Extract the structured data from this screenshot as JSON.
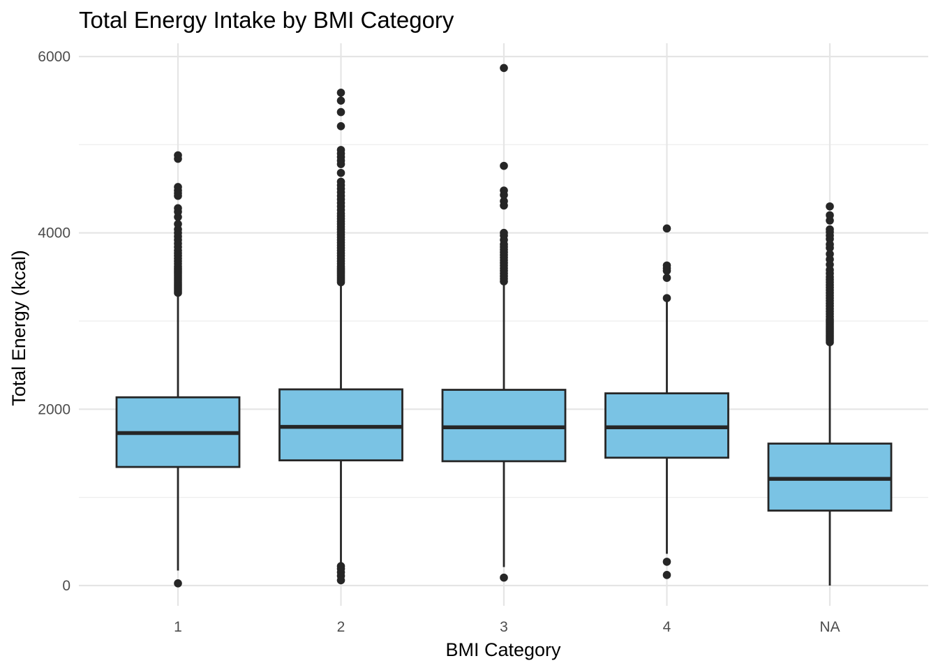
{
  "chart_data": {
    "type": "box",
    "title": "Total Energy Intake by BMI Category",
    "xlabel": "BMI Category",
    "ylabel": "Total Energy (kcal)",
    "ylim": [
      -270,
      6200
    ],
    "yticks": [
      0,
      2000,
      4000,
      6000
    ],
    "ytick_labels": [
      "0",
      "2000",
      "4000",
      "6000"
    ],
    "categories": [
      "1",
      "2",
      "3",
      "4",
      "NA"
    ],
    "box_fill": "#7AC3E4",
    "box_stroke": "#262626",
    "grid": true,
    "legend": "none",
    "boxes": [
      {
        "category": "1",
        "q1": 1345,
        "median": 1730,
        "q3": 2135,
        "whisker_low": 170,
        "whisker_high": 3310,
        "outliers": [
          25,
          3320,
          3340,
          3360,
          3380,
          3400,
          3420,
          3440,
          3460,
          3480,
          3500,
          3520,
          3540,
          3560,
          3580,
          3600,
          3620,
          3650,
          3680,
          3710,
          3740,
          3770,
          3800,
          3840,
          3880,
          3920,
          3960,
          4000,
          4040,
          4100,
          4180,
          4240,
          4280,
          4420,
          4450,
          4480,
          4520,
          4840,
          4880
        ]
      },
      {
        "category": "2",
        "q1": 1420,
        "median": 1800,
        "q3": 2225,
        "whisker_low": 230,
        "whisker_high": 3430,
        "outliers": [
          60,
          110,
          150,
          190,
          220,
          3440,
          3460,
          3480,
          3500,
          3520,
          3540,
          3560,
          3580,
          3600,
          3620,
          3650,
          3680,
          3710,
          3740,
          3770,
          3800,
          3830,
          3860,
          3890,
          3920,
          3950,
          3980,
          4010,
          4040,
          4070,
          4100,
          4130,
          4160,
          4190,
          4220,
          4260,
          4300,
          4340,
          4380,
          4420,
          4460,
          4500,
          4540,
          4580,
          4680,
          4780,
          4820,
          4860,
          4900,
          4940,
          5210,
          5370,
          5500,
          5590
        ]
      },
      {
        "category": "3",
        "q1": 1410,
        "median": 1795,
        "q3": 2220,
        "whisker_low": 210,
        "whisker_high": 3430,
        "outliers": [
          90,
          3450,
          3480,
          3510,
          3540,
          3570,
          3600,
          3630,
          3660,
          3690,
          3720,
          3750,
          3780,
          3810,
          3840,
          3870,
          3920,
          3970,
          4000,
          4310,
          4360,
          4430,
          4480,
          4760,
          5870
        ]
      },
      {
        "category": "4",
        "q1": 1450,
        "median": 1795,
        "q3": 2180,
        "whisker_low": 360,
        "whisker_high": 3270,
        "outliers": [
          120,
          270,
          3260,
          3490,
          3570,
          3600,
          3630,
          4050
        ]
      },
      {
        "category": "NA",
        "q1": 850,
        "median": 1210,
        "q3": 1610,
        "whisker_low": 0,
        "whisker_high": 2740,
        "outliers": [
          2760,
          2780,
          2800,
          2820,
          2840,
          2860,
          2880,
          2900,
          2920,
          2940,
          2960,
          2980,
          3000,
          3020,
          3050,
          3080,
          3110,
          3140,
          3170,
          3200,
          3230,
          3260,
          3290,
          3320,
          3350,
          3380,
          3410,
          3440,
          3470,
          3500,
          3540,
          3580,
          3640,
          3700,
          3760,
          3830,
          3870,
          3930,
          3970,
          4010,
          4040,
          4140,
          4200,
          4300
        ]
      }
    ]
  }
}
